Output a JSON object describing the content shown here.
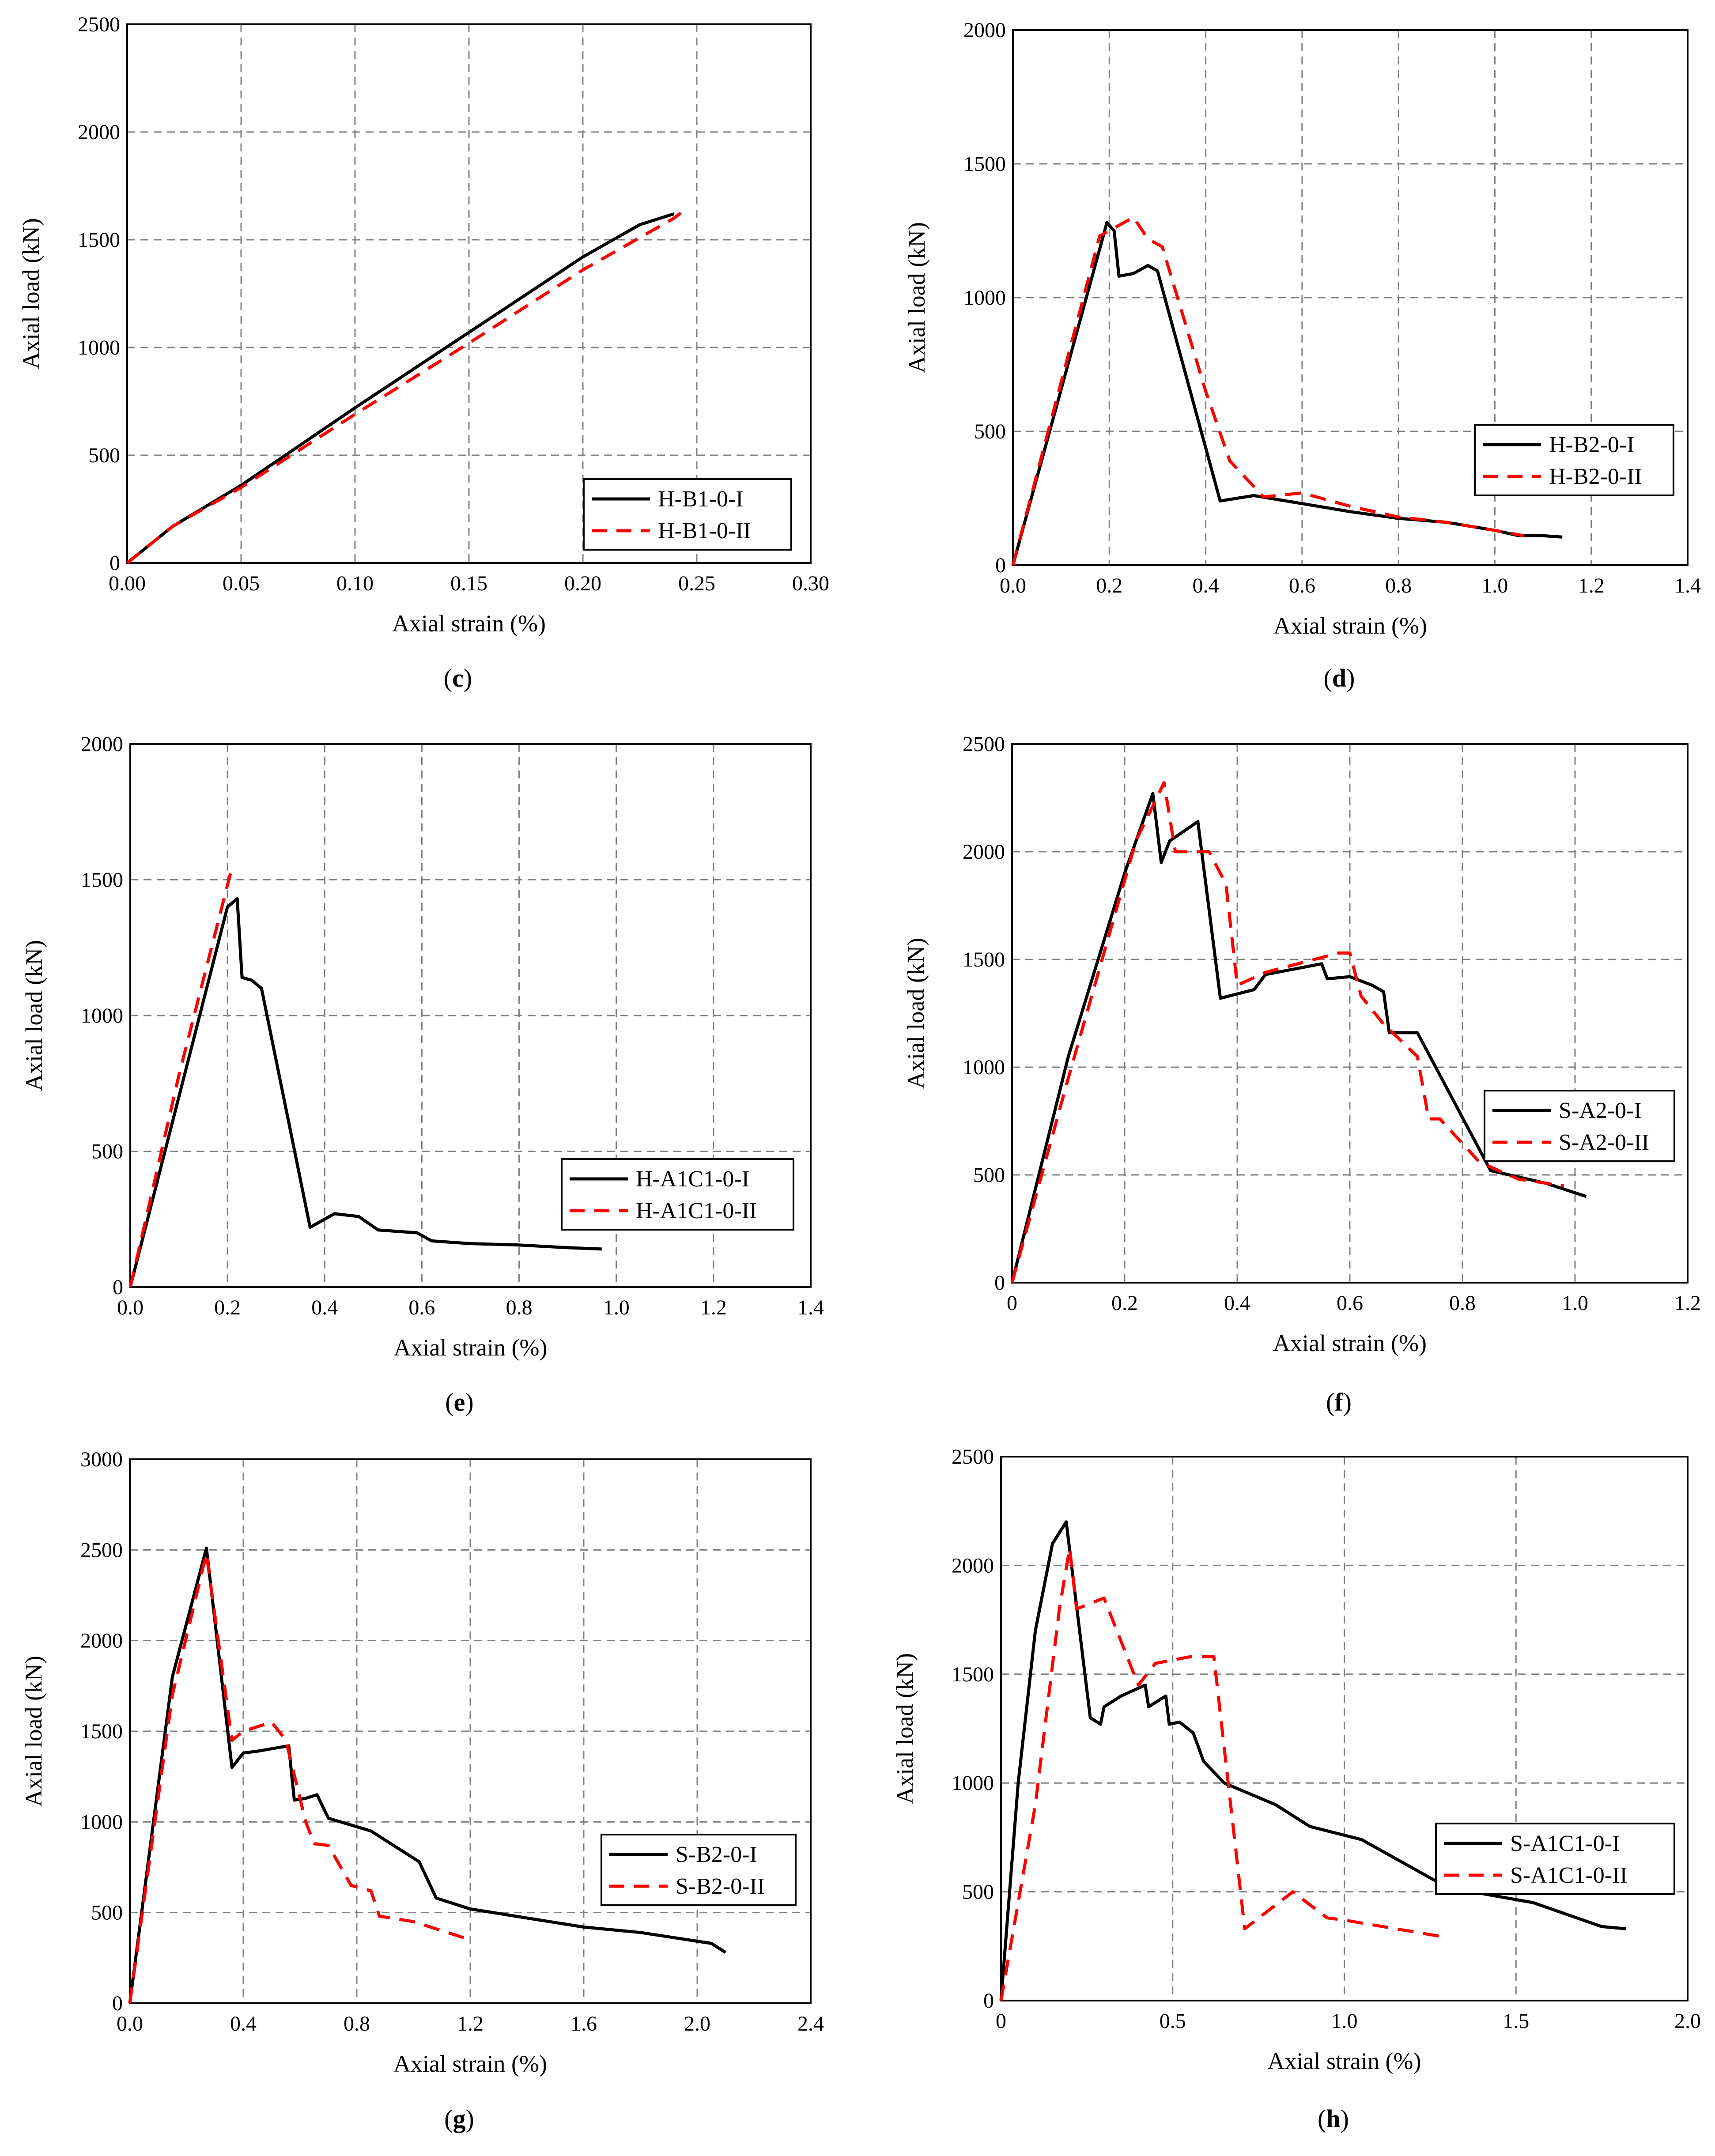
{
  "chart_data": [
    {
      "panel": "c",
      "type": "line",
      "xlabel": "Axial strain (%)",
      "ylabel": "Axial load (kN)",
      "xlim": [
        0,
        0.3
      ],
      "ylim": [
        0,
        2500
      ],
      "xticks": [
        0,
        0.05,
        0.1,
        0.15,
        0.2,
        0.25,
        0.3
      ],
      "yticks": [
        0,
        500,
        1000,
        1500,
        2000,
        2500
      ],
      "xtick_labels": [
        "0.00",
        "0.05",
        "0.10",
        "0.15",
        "0.20",
        "0.25",
        "0.30"
      ],
      "ytick_labels": [
        "0",
        "500",
        "1000",
        "1500",
        "2000",
        "2500"
      ],
      "legend": "bottom-right",
      "series": [
        {
          "name": "H-B1-0-I",
          "style": "solid",
          "color": "#000000",
          "x": [
            0,
            0.02,
            0.05,
            0.1,
            0.15,
            0.2,
            0.225,
            0.24
          ],
          "y": [
            0,
            170,
            360,
            720,
            1070,
            1420,
            1570,
            1620
          ]
        },
        {
          "name": "H-B1-0-II",
          "style": "dashed",
          "color": "#ff0000",
          "x": [
            0,
            0.02,
            0.05,
            0.1,
            0.15,
            0.2,
            0.24,
            0.243
          ],
          "y": [
            0,
            170,
            350,
            690,
            1020,
            1360,
            1600,
            1625
          ]
        }
      ]
    },
    {
      "panel": "d",
      "type": "line",
      "xlabel": "Axial strain (%)",
      "ylabel": "Axial load (kN)",
      "xlim": [
        0,
        1.4
      ],
      "ylim": [
        0,
        2000
      ],
      "xticks": [
        0,
        0.2,
        0.4,
        0.6,
        0.8,
        1.0,
        1.2,
        1.4
      ],
      "yticks": [
        0,
        500,
        1000,
        1500,
        2000
      ],
      "xtick_labels": [
        "0.0",
        "0.2",
        "0.4",
        "0.6",
        "0.8",
        "1.0",
        "1.2",
        "1.4"
      ],
      "ytick_labels": [
        "0",
        "500",
        "1000",
        "1500",
        "2000"
      ],
      "legend": "middle-right",
      "series": [
        {
          "name": "H-B2-0-I",
          "style": "solid",
          "color": "#000000",
          "x": [
            0,
            0.195,
            0.21,
            0.22,
            0.25,
            0.27,
            0.28,
            0.3,
            0.43,
            0.5,
            0.6,
            0.7,
            0.8,
            0.9,
            1.0,
            1.05,
            1.1,
            1.14
          ],
          "y": [
            0,
            1280,
            1250,
            1080,
            1090,
            1110,
            1120,
            1100,
            240,
            260,
            230,
            200,
            175,
            160,
            130,
            110,
            110,
            105
          ]
        },
        {
          "name": "H-B2-0-II",
          "style": "dashed",
          "color": "#ff0000",
          "x": [
            0,
            0.18,
            0.22,
            0.25,
            0.28,
            0.31,
            0.4,
            0.45,
            0.52,
            0.6,
            0.7,
            0.8,
            0.9,
            1.0,
            1.06
          ],
          "y": [
            0,
            1230,
            1270,
            1300,
            1220,
            1190,
            650,
            390,
            255,
            270,
            220,
            180,
            160,
            130,
            110
          ]
        }
      ]
    },
    {
      "panel": "e",
      "type": "line",
      "xlabel": "Axial strain (%)",
      "ylabel": "Axial load (kN)",
      "xlim": [
        0,
        1.4
      ],
      "ylim": [
        0,
        2000
      ],
      "xticks": [
        0,
        0.2,
        0.4,
        0.6,
        0.8,
        1.0,
        1.2,
        1.4
      ],
      "yticks": [
        0,
        500,
        1000,
        1500,
        2000
      ],
      "xtick_labels": [
        "0.0",
        "0.2",
        "0.4",
        "0.6",
        "0.8",
        "1.0",
        "1.2",
        "1.4"
      ],
      "ytick_labels": [
        "0",
        "500",
        "1000",
        "1500",
        "2000"
      ],
      "legend": "bottom-right",
      "series": [
        {
          "name": "H-A1C1-0-I",
          "style": "solid",
          "color": "#000000",
          "x": [
            0,
            0.2,
            0.22,
            0.23,
            0.25,
            0.27,
            0.37,
            0.42,
            0.47,
            0.51,
            0.59,
            0.62,
            0.7,
            0.8,
            0.9,
            0.97
          ],
          "y": [
            0,
            1400,
            1430,
            1140,
            1130,
            1100,
            220,
            270,
            260,
            210,
            200,
            170,
            160,
            155,
            145,
            140
          ]
        },
        {
          "name": "H-A1C1-0-II",
          "style": "dashed",
          "color": "#ff0000",
          "x": [
            0,
            0.1,
            0.21
          ],
          "y": [
            0,
            780,
            1550
          ]
        }
      ]
    },
    {
      "panel": "f",
      "type": "line",
      "xlabel": "Axial strain (%)",
      "ylabel": "Axial load (kN)",
      "xlim": [
        0,
        1.2
      ],
      "ylim": [
        0,
        2500
      ],
      "xticks": [
        0,
        0.2,
        0.4,
        0.6,
        0.8,
        1.0,
        1.2
      ],
      "yticks": [
        0,
        500,
        1000,
        1500,
        2000,
        2500
      ],
      "xtick_labels": [
        "0",
        "0.2",
        "0.4",
        "0.6",
        "0.8",
        "1.0",
        "1.2"
      ],
      "ytick_labels": [
        "0",
        "500",
        "1000",
        "1500",
        "2000",
        "2500"
      ],
      "legend": "bottom-right",
      "series": [
        {
          "name": "S-A2-0-I",
          "style": "solid",
          "color": "#000000",
          "x": [
            0,
            0.1,
            0.2,
            0.25,
            0.265,
            0.28,
            0.33,
            0.37,
            0.43,
            0.45,
            0.55,
            0.56,
            0.6,
            0.64,
            0.66,
            0.67,
            0.72,
            0.85,
            0.95,
            1.02
          ],
          "y": [
            0,
            1050,
            1900,
            2270,
            1950,
            2050,
            2140,
            1320,
            1360,
            1430,
            1480,
            1410,
            1420,
            1380,
            1350,
            1160,
            1160,
            520,
            460,
            400
          ]
        },
        {
          "name": "S-A2-0-II",
          "style": "dashed",
          "color": "#ff0000",
          "x": [
            0,
            0.1,
            0.22,
            0.27,
            0.29,
            0.35,
            0.38,
            0.4,
            0.45,
            0.58,
            0.6,
            0.62,
            0.66,
            0.72,
            0.74,
            0.76,
            0.83,
            0.9,
            0.98
          ],
          "y": [
            0,
            950,
            2050,
            2320,
            2000,
            2000,
            1850,
            1380,
            1440,
            1530,
            1530,
            1330,
            1200,
            1050,
            760,
            760,
            560,
            480,
            450
          ]
        }
      ]
    },
    {
      "panel": "g",
      "type": "line",
      "xlabel": "Axial strain (%)",
      "ylabel": "Axial load (kN)",
      "xlim": [
        0,
        2.4
      ],
      "ylim": [
        0,
        3000
      ],
      "xticks": [
        0,
        0.4,
        0.8,
        1.2,
        1.6,
        2.0,
        2.4
      ],
      "yticks": [
        0,
        500,
        1000,
        1500,
        2000,
        2500,
        3000
      ],
      "xtick_labels": [
        "0.0",
        "0.4",
        "0.8",
        "1.2",
        "1.6",
        "2.0",
        "2.4"
      ],
      "ytick_labels": [
        "0",
        "500",
        "1000",
        "1500",
        "2000",
        "2500",
        "3000"
      ],
      "legend": "middle-right",
      "series": [
        {
          "name": "S-B2-0-I",
          "style": "solid",
          "color": "#000000",
          "x": [
            0,
            0.15,
            0.27,
            0.36,
            0.4,
            0.45,
            0.56,
            0.58,
            0.62,
            0.66,
            0.7,
            0.85,
            1.02,
            1.08,
            1.2,
            1.6,
            1.8,
            2.05,
            2.1
          ],
          "y": [
            0,
            1800,
            2510,
            1300,
            1380,
            1390,
            1420,
            1120,
            1130,
            1150,
            1020,
            950,
            780,
            580,
            520,
            420,
            390,
            330,
            280
          ]
        },
        {
          "name": "S-B2-0-II",
          "style": "dashed",
          "color": "#ff0000",
          "x": [
            0,
            0.15,
            0.27,
            0.36,
            0.4,
            0.5,
            0.55,
            0.62,
            0.65,
            0.7,
            0.78,
            0.85,
            0.88,
            1.0,
            1.2
          ],
          "y": [
            0,
            1700,
            2480,
            1450,
            1500,
            1550,
            1450,
            1000,
            880,
            870,
            650,
            620,
            480,
            450,
            350
          ]
        }
      ]
    },
    {
      "panel": "h",
      "type": "line",
      "xlabel": "Axial strain (%)",
      "ylabel": "Axial load (kN)",
      "xlim": [
        0,
        2.0
      ],
      "ylim": [
        0,
        2500
      ],
      "xticks": [
        0,
        0.5,
        1.0,
        1.5,
        2.0
      ],
      "yticks": [
        0,
        500,
        1000,
        1500,
        2000,
        2500
      ],
      "xtick_labels": [
        "0",
        "0.5",
        "1.0",
        "1.5",
        "2.0"
      ],
      "ytick_labels": [
        "0",
        "500",
        "1000",
        "1500",
        "2000",
        "2500"
      ],
      "legend": "middle-right",
      "series": [
        {
          "name": "S-A1C1-0-I",
          "style": "solid",
          "color": "#000000",
          "x": [
            0,
            0.05,
            0.1,
            0.15,
            0.19,
            0.26,
            0.29,
            0.3,
            0.35,
            0.42,
            0.43,
            0.48,
            0.49,
            0.52,
            0.56,
            0.59,
            0.65,
            0.8,
            0.9,
            1.05,
            1.3,
            1.55,
            1.75,
            1.82
          ],
          "y": [
            0,
            1000,
            1700,
            2100,
            2200,
            1300,
            1270,
            1350,
            1400,
            1450,
            1350,
            1400,
            1270,
            1280,
            1230,
            1100,
            1000,
            900,
            800,
            740,
            520,
            450,
            340,
            330
          ]
        },
        {
          "name": "S-A1C1-0-II",
          "style": "dashed",
          "color": "#ff0000",
          "x": [
            0,
            0.1,
            0.17,
            0.2,
            0.22,
            0.3,
            0.4,
            0.45,
            0.55,
            0.62,
            0.71,
            0.85,
            0.95,
            1.0,
            1.3
          ],
          "y": [
            0,
            900,
            1800,
            2080,
            1800,
            1850,
            1450,
            1550,
            1580,
            1580,
            330,
            500,
            380,
            370,
            290
          ]
        }
      ]
    }
  ]
}
